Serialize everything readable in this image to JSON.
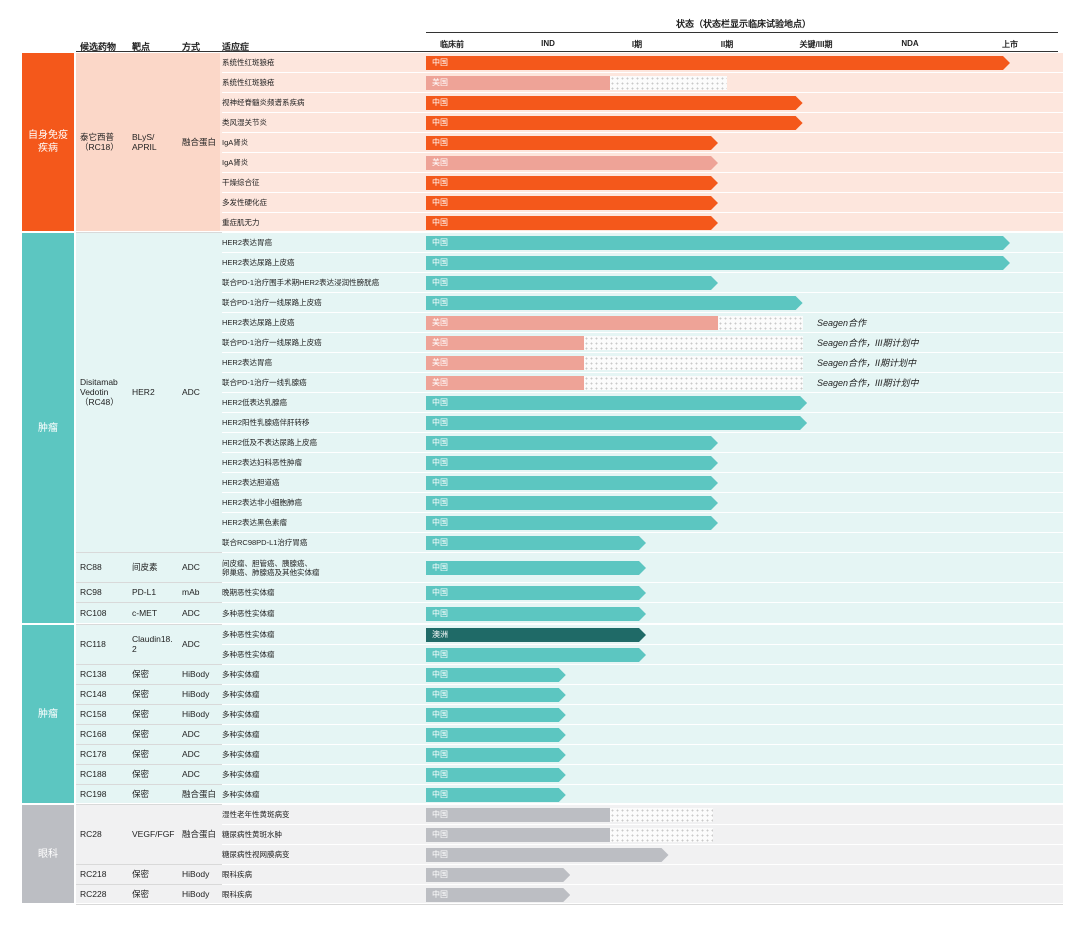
{
  "headers": {
    "candidate": "候选药物",
    "target": "靶点",
    "modality": "方式",
    "indication": "适应症",
    "status": "状态（状态栏显示临床试验地点）"
  },
  "stages": [
    "临床前",
    "IND",
    "I期",
    "II期",
    "关键/III期",
    "NDA",
    "上市"
  ],
  "colors": {
    "autoimmune": "#f4581b",
    "autoimmune_light": "#fde6dd",
    "autoimmune_cell": "#fbd7c8",
    "oncology": "#5cc6c1",
    "oncology_light": "#e5f5f4",
    "ophthalmology": "#bcbec3",
    "ophthalmology_light": "#f1f1f2",
    "us_bar": "#eea397",
    "australia_bar": "#1f6a67"
  },
  "categories": [
    {
      "label": "自身免疫\n疾病",
      "key": "autoimmune"
    },
    {
      "label": "肿瘤",
      "key": "oncology"
    },
    {
      "label": "肿瘤",
      "key": "oncology"
    },
    {
      "label": "眼科",
      "key": "ophthalmology"
    }
  ],
  "groups": [
    {
      "drug": "泰它西普\n（RC18）",
      "target": "BLyS/\nAPRIL",
      "modality": "融合蛋白"
    },
    {
      "drug": "Disitamab\nVedotin\n（RC48）",
      "target": "HER2",
      "modality": "ADC"
    },
    {
      "drug": "RC88",
      "target": "间皮素",
      "modality": "ADC"
    },
    {
      "drug": "RC98",
      "target": "PD-L1",
      "modality": "mAb"
    },
    {
      "drug": "RC108",
      "target": "c-MET",
      "modality": "ADC"
    },
    {
      "drug": "RC118",
      "target": "Claudin18.\n2",
      "modality": "ADC"
    },
    {
      "drug": "RC138",
      "target": "保密",
      "modality": "HiBody"
    },
    {
      "drug": "RC148",
      "target": "保密",
      "modality": "HiBody"
    },
    {
      "drug": "RC158",
      "target": "保密",
      "modality": "HiBody"
    },
    {
      "drug": "RC168",
      "target": "保密",
      "modality": "ADC"
    },
    {
      "drug": "RC178",
      "target": "保密",
      "modality": "ADC"
    },
    {
      "drug": "RC188",
      "target": "保密",
      "modality": "ADC"
    },
    {
      "drug": "RC198",
      "target": "保密",
      "modality": "融合蛋白"
    },
    {
      "drug": "RC28",
      "target": "VEGF/FGF",
      "modality": "融合蛋白"
    },
    {
      "drug": "RC218",
      "target": "保密",
      "modality": "HiBody"
    },
    {
      "drug": "RC228",
      "target": "保密",
      "modality": "HiBody"
    }
  ],
  "chart_data": {
    "type": "bar",
    "orientation": "horizontal",
    "x_stages": [
      "临床前",
      "IND",
      "I期",
      "II期",
      "关键/III期",
      "NDA",
      "上市"
    ],
    "rows": [
      {
        "indication": "系统性红斑狼疮",
        "region": "中国",
        "progress": 6.0,
        "planned_to": null,
        "note": ""
      },
      {
        "indication": "系统性红斑狼疮",
        "region": "美国",
        "progress": 1.7,
        "planned_to": 3.0,
        "note": ""
      },
      {
        "indication": "视神经脊髓炎频谱系疾病",
        "region": "中国",
        "progress": 3.85,
        "planned_to": null,
        "note": ""
      },
      {
        "indication": "类风湿关节炎",
        "region": "中国",
        "progress": 3.85,
        "planned_to": null,
        "note": ""
      },
      {
        "indication": "IgA肾炎",
        "region": "中国",
        "progress": 2.9,
        "planned_to": null,
        "note": ""
      },
      {
        "indication": "IgA肾炎",
        "region": "美国",
        "progress": 2.9,
        "planned_to": null,
        "note": ""
      },
      {
        "indication": "干燥综合征",
        "region": "中国",
        "progress": 2.9,
        "planned_to": null,
        "note": ""
      },
      {
        "indication": "多发性硬化症",
        "region": "中国",
        "progress": 2.9,
        "planned_to": null,
        "note": ""
      },
      {
        "indication": "重症肌无力",
        "region": "中国",
        "progress": 2.9,
        "planned_to": null,
        "note": ""
      },
      {
        "indication": "HER2表达胃癌",
        "region": "中国",
        "progress": 6.0,
        "planned_to": null,
        "note": ""
      },
      {
        "indication": "HER2表达尿路上皮癌",
        "region": "中国",
        "progress": 6.0,
        "planned_to": null,
        "note": ""
      },
      {
        "indication": "联合PD-1治疗围手术期HER2表达浸润性膀胱癌",
        "region": "中国",
        "progress": 2.9,
        "planned_to": null,
        "note": ""
      },
      {
        "indication": "联合PD-1治疗一线尿路上皮癌",
        "region": "中国",
        "progress": 3.85,
        "planned_to": null,
        "note": ""
      },
      {
        "indication": "HER2表达尿路上皮癌",
        "region": "美国",
        "progress": 2.9,
        "planned_to": 3.85,
        "note": "Seagen合作"
      },
      {
        "indication": "联合PD-1治疗一线尿路上皮癌",
        "region": "美国",
        "progress": 1.4,
        "planned_to": 3.85,
        "note": "Seagen合作，III期计划中"
      },
      {
        "indication": "HER2表达胃癌",
        "region": "美国",
        "progress": 1.4,
        "planned_to": 3.85,
        "note": "Seagen合作，II期计划中"
      },
      {
        "indication": "联合PD-1治疗一线乳腺癌",
        "region": "美国",
        "progress": 1.4,
        "planned_to": 3.85,
        "note": "Seagen合作，III期计划中"
      },
      {
        "indication": "HER2低表达乳腺癌",
        "region": "中国",
        "progress": 3.9,
        "planned_to": null,
        "note": ""
      },
      {
        "indication": "HER2阳性乳腺癌伴肝转移",
        "region": "中国",
        "progress": 3.9,
        "planned_to": null,
        "note": ""
      },
      {
        "indication": "HER2低及不表达尿路上皮癌",
        "region": "中国",
        "progress": 2.9,
        "planned_to": null,
        "note": ""
      },
      {
        "indication": "HER2表达妇科恶性肿瘤",
        "region": "中国",
        "progress": 2.9,
        "planned_to": null,
        "note": ""
      },
      {
        "indication": "HER2表达胆道癌",
        "region": "中国",
        "progress": 2.9,
        "planned_to": null,
        "note": ""
      },
      {
        "indication": "HER2表达非小细胞肺癌",
        "region": "中国",
        "progress": 2.9,
        "planned_to": null,
        "note": ""
      },
      {
        "indication": "HER2表达黑色素瘤",
        "region": "中国",
        "progress": 2.9,
        "planned_to": null,
        "note": ""
      },
      {
        "indication": "联合RC98PD-L1治疗胃癌",
        "region": "中国",
        "progress": 2.1,
        "planned_to": null,
        "note": ""
      },
      {
        "indication": "间皮瘤、胆管癌、胰腺癌、\n卵巢癌、肺腺癌及其他实体瘤",
        "region": "中国",
        "progress": 2.1,
        "planned_to": null,
        "note": ""
      },
      {
        "indication": "晚期恶性实体瘤",
        "region": "中国",
        "progress": 2.1,
        "planned_to": null,
        "note": ""
      },
      {
        "indication": "多种恶性实体瘤",
        "region": "中国",
        "progress": 2.1,
        "planned_to": null,
        "note": ""
      },
      {
        "indication": "多种恶性实体瘤",
        "region": "澳洲",
        "progress": 2.1,
        "planned_to": null,
        "note": ""
      },
      {
        "indication": "多种恶性实体瘤",
        "region": "中国",
        "progress": 2.1,
        "planned_to": null,
        "note": ""
      },
      {
        "indication": "多种实体瘤",
        "region": "中国",
        "progress": 1.2,
        "planned_to": null,
        "note": ""
      },
      {
        "indication": "多种实体瘤",
        "region": "中国",
        "progress": 1.2,
        "planned_to": null,
        "note": ""
      },
      {
        "indication": "多种实体瘤",
        "region": "中国",
        "progress": 1.2,
        "planned_to": null,
        "note": ""
      },
      {
        "indication": "多种实体瘤",
        "region": "中国",
        "progress": 1.2,
        "planned_to": null,
        "note": ""
      },
      {
        "indication": "多种实体瘤",
        "region": "中国",
        "progress": 1.2,
        "planned_to": null,
        "note": ""
      },
      {
        "indication": "多种实体瘤",
        "region": "中国",
        "progress": 1.2,
        "planned_to": null,
        "note": ""
      },
      {
        "indication": "多种实体瘤",
        "region": "中国",
        "progress": 1.2,
        "planned_to": null,
        "note": ""
      },
      {
        "indication": "湿性老年性黄斑病变",
        "region": "中国",
        "progress": 1.7,
        "planned_to": 2.85,
        "note": ""
      },
      {
        "indication": "糖尿病性黄斑水肿",
        "region": "中国",
        "progress": 1.7,
        "planned_to": 2.85,
        "note": ""
      },
      {
        "indication": "糖尿病性视网膜病变",
        "region": "中国",
        "progress": 2.35,
        "planned_to": null,
        "note": ""
      },
      {
        "indication": "眼科疾病",
        "region": "中国",
        "progress": 1.25,
        "planned_to": null,
        "note": ""
      },
      {
        "indication": "眼科疾病",
        "region": "中国",
        "progress": 1.25,
        "planned_to": null,
        "note": ""
      }
    ]
  }
}
